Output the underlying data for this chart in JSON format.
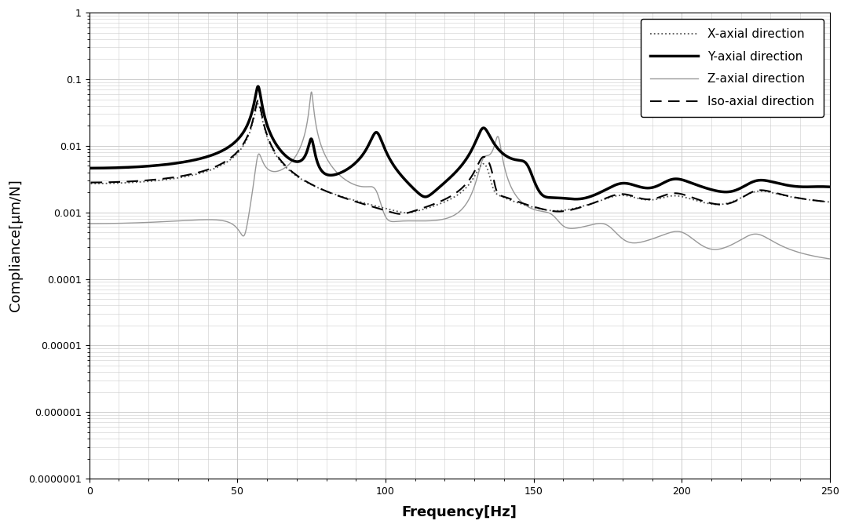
{
  "xlabel": "Frequency[Hz]",
  "ylabel": "Compliance[μm/N]",
  "xlim": [
    0,
    250
  ],
  "ylim_log": [
    1e-07,
    1
  ],
  "legend": [
    {
      "label": "X-axial direction",
      "linestyle": "dotted",
      "color": "#555555",
      "linewidth": 1.3
    },
    {
      "label": "Y-axial direction",
      "linestyle": "solid",
      "color": "#000000",
      "linewidth": 2.5
    },
    {
      "label": "Z-axial direction",
      "linestyle": "solid",
      "color": "#999999",
      "linewidth": 1.0
    },
    {
      "label": "Iso-axial direction",
      "linestyle": "dashed",
      "color": "#000000",
      "linewidth": 1.5
    }
  ],
  "background_color": "#ffffff",
  "grid_color": "#cccccc",
  "axis_fontsize": 13,
  "legend_fontsize": 11
}
